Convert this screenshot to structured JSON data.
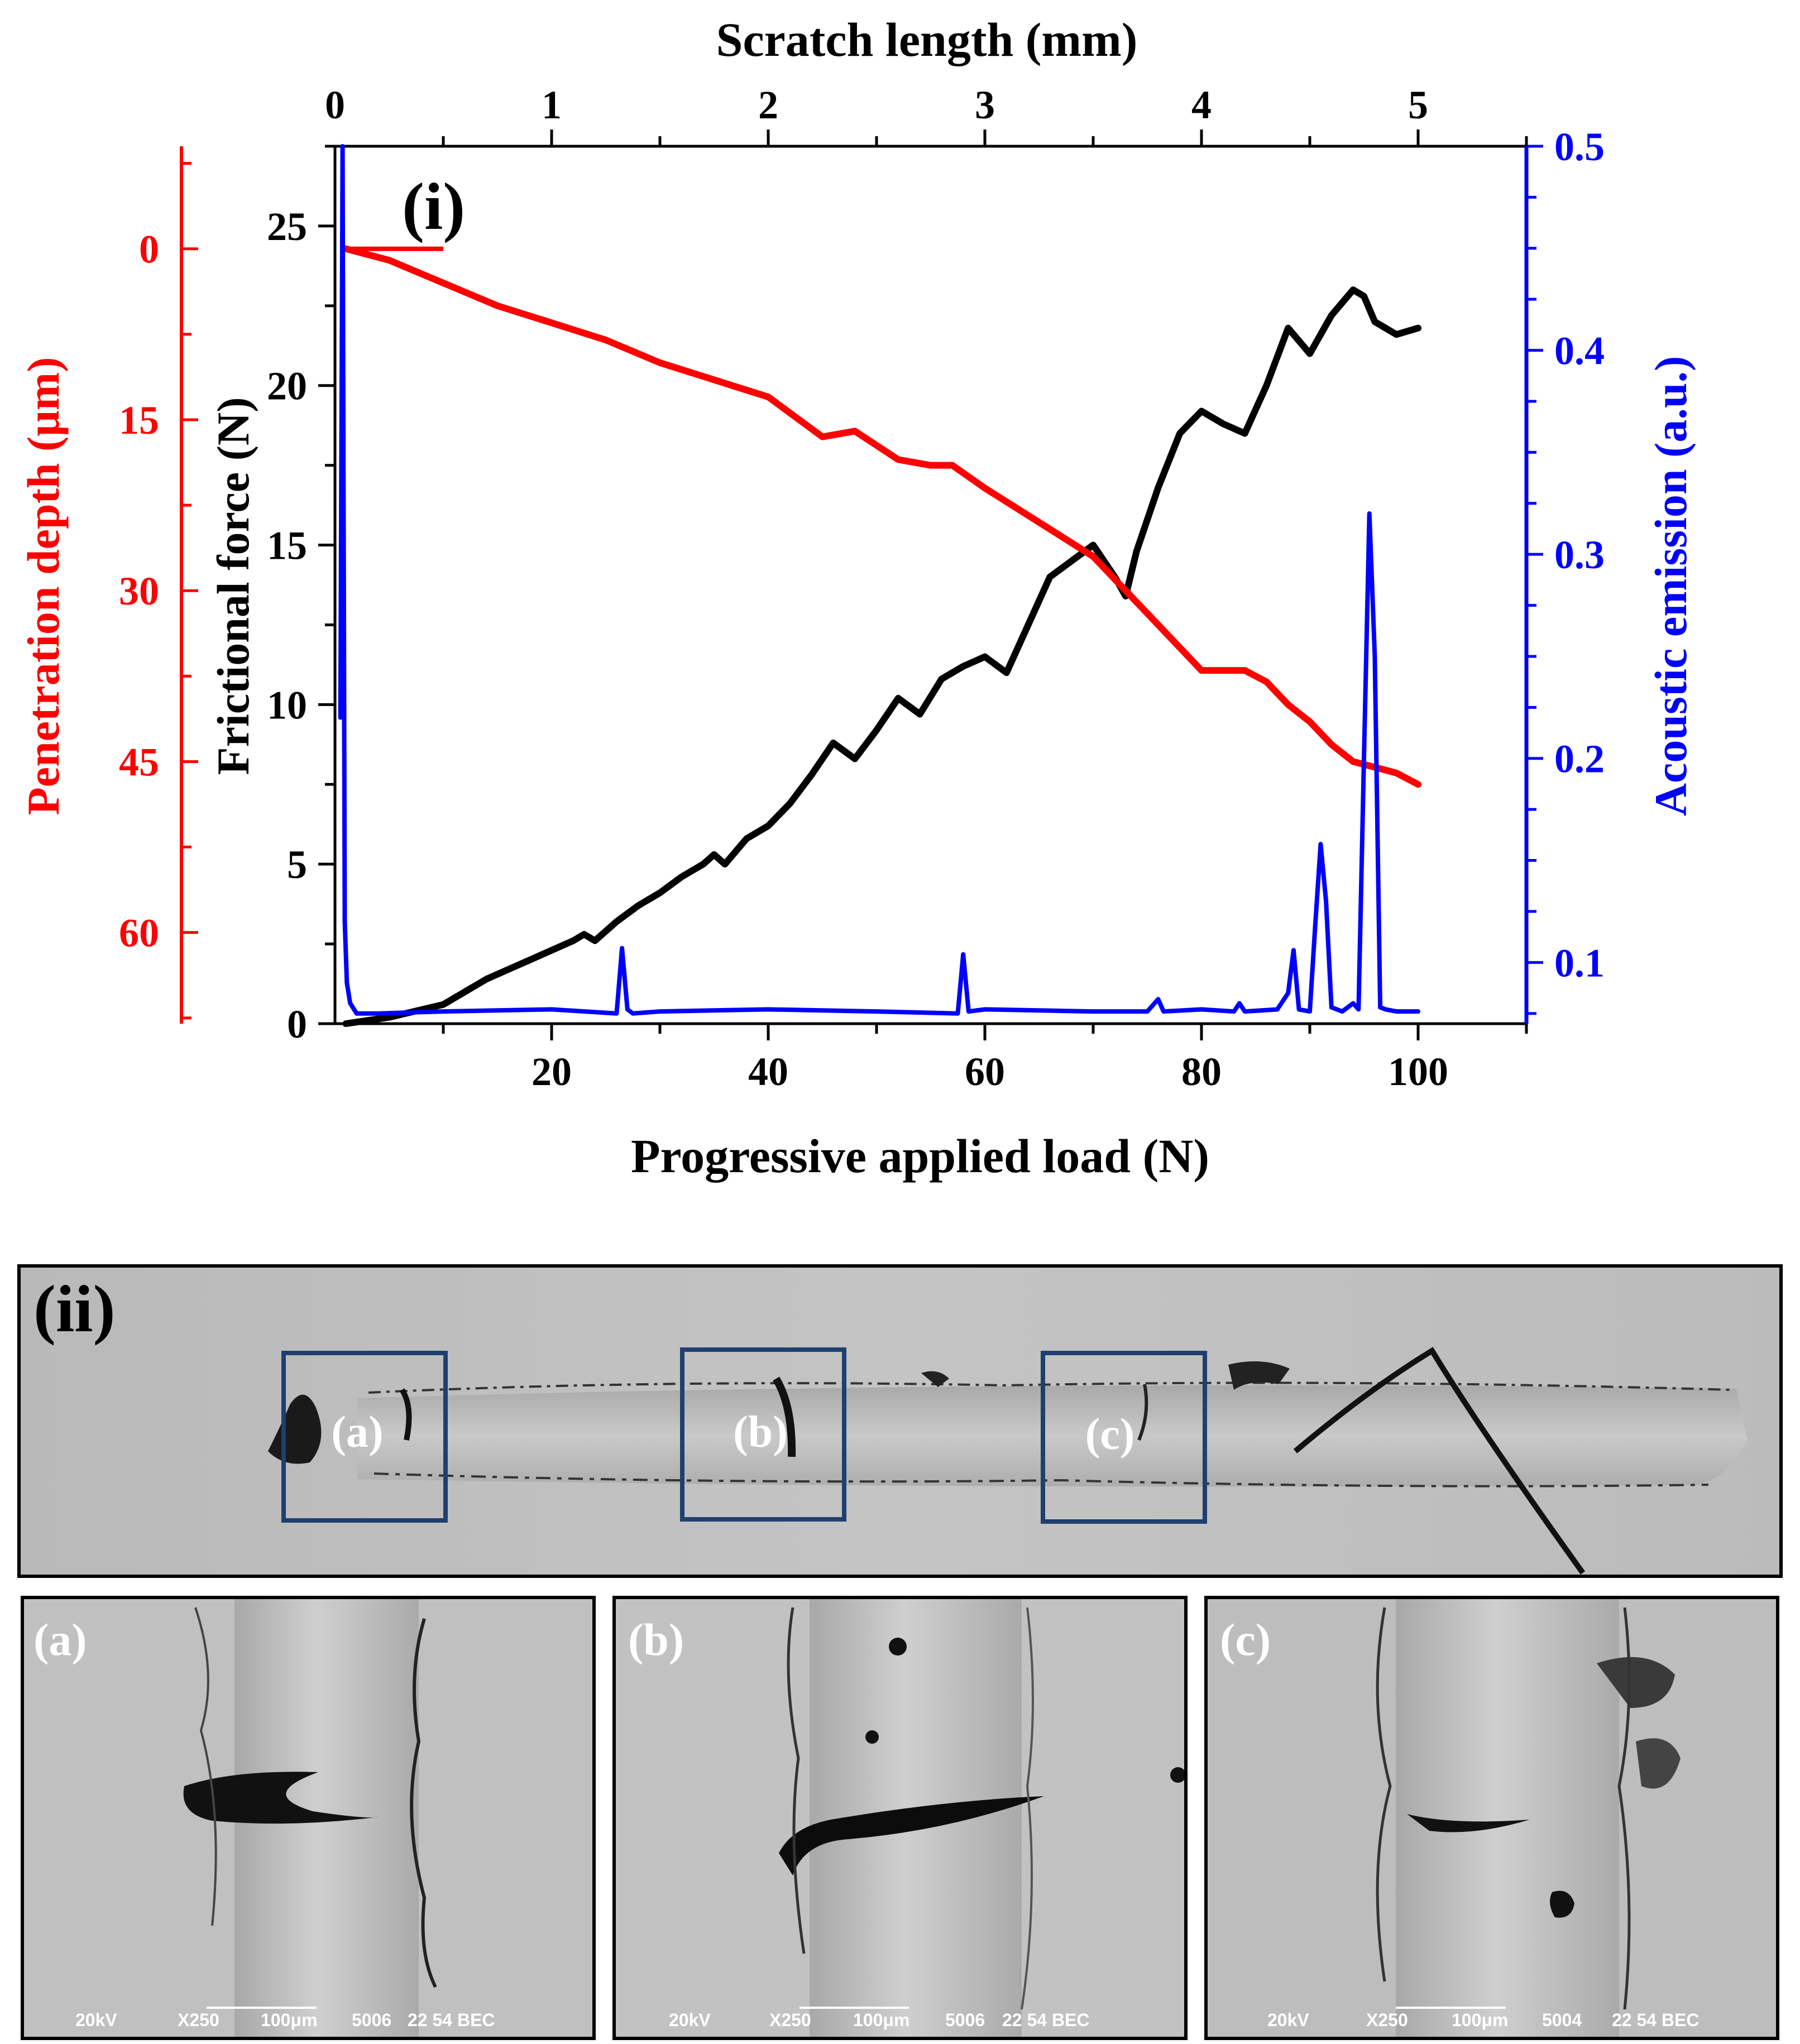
{
  "chart_data": {
    "type": "line",
    "panel_label": "(i)",
    "top_axis": {
      "label": "Scratch length (mm)",
      "ticks": [
        "0",
        "1",
        "2",
        "3",
        "4",
        "5"
      ],
      "range": [
        0,
        5.5
      ]
    },
    "x_axis": {
      "label": "Progressive applied load (N)",
      "ticks": [
        "20",
        "40",
        "60",
        "80",
        "100"
      ],
      "range": [
        0,
        110
      ]
    },
    "left_outer_axis": {
      "label": "Penetration depth (μm)",
      "ticks": [
        "0",
        "15",
        "30",
        "45",
        "60"
      ],
      "range": [
        -9,
        68
      ],
      "color": "#ff0000"
    },
    "left_inner_axis": {
      "label": "Frictional force (N)",
      "ticks": [
        "0",
        "5",
        "10",
        "15",
        "20",
        "25"
      ],
      "range": [
        0,
        27.5
      ],
      "color": "#000000"
    },
    "right_axis": {
      "label": "Acoustic emission (a.u.)",
      "ticks": [
        "0.1",
        "0.2",
        "0.3",
        "0.4",
        "0.5"
      ],
      "range": [
        0.07,
        0.5
      ],
      "color": "#0000ff"
    },
    "series": [
      {
        "name": "Frictional force",
        "color": "#000000",
        "axis": "left_inner",
        "x": [
          1,
          5,
          10,
          12,
          14,
          16,
          18,
          20,
          22,
          23,
          24,
          26,
          28,
          30,
          32,
          34,
          35,
          36,
          38,
          40,
          42,
          44,
          46,
          48,
          50,
          52,
          54,
          56,
          58,
          60,
          62,
          64,
          66,
          68,
          70,
          72,
          73,
          74,
          76,
          78,
          80,
          82,
          84,
          86,
          88,
          90,
          92,
          94,
          95,
          96,
          98,
          100
        ],
        "values": [
          0,
          0.2,
          0.6,
          1.0,
          1.4,
          1.7,
          2.0,
          2.3,
          2.6,
          2.8,
          2.6,
          3.2,
          3.7,
          4.1,
          4.6,
          5.0,
          5.3,
          5.0,
          5.8,
          6.2,
          6.9,
          7.8,
          8.8,
          8.3,
          9.2,
          10.2,
          9.7,
          10.8,
          11.2,
          11.5,
          11.0,
          12.5,
          14.0,
          14.5,
          15.0,
          14.0,
          13.4,
          14.8,
          16.8,
          18.5,
          19.2,
          18.8,
          18.5,
          20.0,
          21.8,
          21.0,
          22.2,
          23.0,
          22.8,
          22.0,
          21.6,
          21.8
        ]
      },
      {
        "name": "Penetration depth",
        "color": "#ff0000",
        "axis": "left_outer",
        "x": [
          1,
          5,
          10,
          15,
          20,
          25,
          30,
          35,
          40,
          45,
          48,
          52,
          55,
          57,
          60,
          65,
          70,
          72,
          75,
          78,
          80,
          82,
          84,
          86,
          88,
          90,
          92,
          94,
          96,
          98,
          100
        ],
        "values": [
          0,
          1,
          3,
          5,
          6.5,
          8,
          10,
          11.5,
          13,
          16.5,
          16,
          18.5,
          19,
          19,
          21,
          24,
          27,
          29,
          32,
          35,
          37,
          37,
          37,
          38,
          40,
          41.5,
          43.5,
          45,
          45.5,
          46,
          47
        ]
      },
      {
        "name": "Acoustic emission",
        "color": "#0000ff",
        "axis": "right",
        "x": [
          0.5,
          0.7,
          0.9,
          1.1,
          1.4,
          2,
          4,
          10,
          20,
          26,
          26.5,
          27,
          27.5,
          30,
          40,
          50,
          57.5,
          58,
          58.5,
          60,
          70,
          75,
          76,
          76.5,
          80,
          83,
          83.5,
          84,
          87,
          88,
          88.5,
          89,
          90,
          90.5,
          91,
          91.5,
          92,
          93,
          94,
          94.5,
          95,
          95.5,
          96,
          96.5,
          97,
          98,
          100
        ],
        "values": [
          0.22,
          0.5,
          0.12,
          0.09,
          0.08,
          0.075,
          0.075,
          0.076,
          0.077,
          0.075,
          0.107,
          0.077,
          0.075,
          0.076,
          0.077,
          0.076,
          0.075,
          0.104,
          0.076,
          0.077,
          0.076,
          0.076,
          0.082,
          0.076,
          0.077,
          0.076,
          0.08,
          0.076,
          0.077,
          0.085,
          0.106,
          0.077,
          0.076,
          0.118,
          0.158,
          0.13,
          0.078,
          0.076,
          0.08,
          0.077,
          0.2,
          0.32,
          0.25,
          0.078,
          0.077,
          0.076,
          0.076
        ]
      }
    ]
  },
  "sem": {
    "panel_label": "(ii)",
    "box_labels": [
      "(a)",
      "(b)",
      "(c)"
    ],
    "details": [
      {
        "label": "(a)",
        "kv": "20kV",
        "mag": "X250",
        "scale": "100μm",
        "id": "5006",
        "footer": "22 54 BEC"
      },
      {
        "label": "(b)",
        "kv": "20kV",
        "mag": "X250",
        "scale": "100μm",
        "id": "5006",
        "footer": "22 54 BEC"
      },
      {
        "label": "(c)",
        "kv": "20kV",
        "mag": "X250",
        "scale": "100μm",
        "id": "5004",
        "footer": "22 54 BEC"
      }
    ],
    "box_color": "#1f3f6f"
  }
}
